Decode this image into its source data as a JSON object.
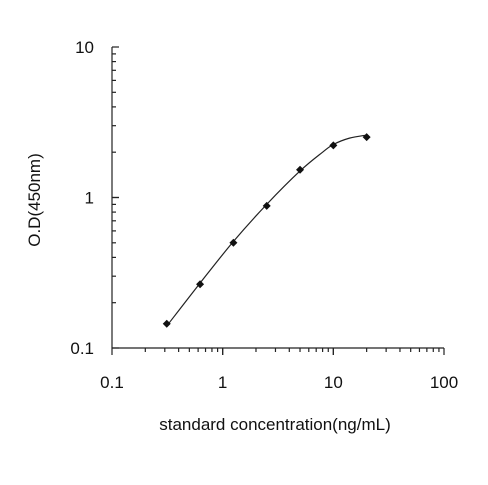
{
  "chart_data": {
    "type": "scatter",
    "xscale": "log",
    "yscale": "log",
    "xlim": [
      0.1,
      100
    ],
    "ylim": [
      0.1,
      10
    ],
    "xlabel": "standard concentration(ng/mL)",
    "ylabel": "O.D(450nm)",
    "x_ticks": [
      "0.1",
      "1",
      "10",
      "100"
    ],
    "y_ticks": [
      "0.1",
      "1",
      "10"
    ],
    "grid": false,
    "series": [
      {
        "marker": "diamond",
        "x": [
          0.3125,
          0.625,
          1.25,
          2.5,
          5,
          10,
          20
        ],
        "y": [
          0.145,
          0.265,
          0.5,
          0.88,
          1.53,
          2.22,
          2.52
        ]
      }
    ],
    "fit_curve": {
      "x": [
        0.3125,
        0.625,
        1.25,
        2.5,
        5,
        8,
        10,
        14,
        20
      ],
      "y": [
        0.14,
        0.27,
        0.51,
        0.9,
        1.5,
        2.0,
        2.25,
        2.48,
        2.6
      ]
    }
  }
}
